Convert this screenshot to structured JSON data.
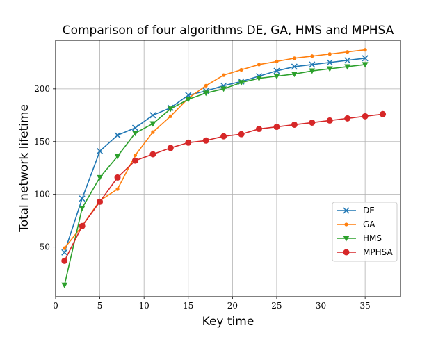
{
  "chart_data": {
    "type": "line",
    "title": "Comparison of four algorithms DE, GA, HMS and MPHSA",
    "xlabel": "Key time",
    "ylabel": "Total network lifetime",
    "xlim": [
      0,
      39
    ],
    "ylim": [
      3,
      246
    ],
    "xticks": [
      0,
      5,
      10,
      15,
      20,
      25,
      30,
      35
    ],
    "yticks": [
      50,
      100,
      150,
      200
    ],
    "grid": true,
    "legend_position": "center-right",
    "series": [
      {
        "name": "DE",
        "color": "#1f77b4",
        "marker": "x",
        "x": [
          1,
          3,
          5,
          7,
          9,
          11,
          13,
          15,
          17,
          19,
          21,
          23,
          25,
          27,
          29,
          31,
          33,
          35
        ],
        "y": [
          45,
          96,
          141,
          156,
          163,
          175,
          182,
          194,
          198,
          203,
          207,
          212,
          217,
          221,
          223,
          225,
          227,
          229
        ]
      },
      {
        "name": "GA",
        "color": "#ff7f0e",
        "marker": "dot",
        "x": [
          1,
          3,
          5,
          7,
          9,
          11,
          13,
          15,
          17,
          19,
          21,
          23,
          25,
          27,
          29,
          31,
          33,
          35
        ],
        "y": [
          49,
          70,
          94,
          105,
          137,
          159,
          174,
          191,
          203,
          213,
          218,
          223,
          226,
          229,
          231,
          233,
          235,
          237
        ]
      },
      {
        "name": "HMS",
        "color": "#2ca02c",
        "marker": "triangle-down",
        "x": [
          1,
          3,
          5,
          7,
          9,
          11,
          13,
          15,
          17,
          19,
          21,
          23,
          25,
          27,
          29,
          31,
          33,
          35
        ],
        "y": [
          14,
          87,
          116,
          136,
          158,
          167,
          181,
          190,
          196,
          200,
          206,
          210,
          212,
          214,
          217,
          219,
          221,
          223
        ]
      },
      {
        "name": "MPHSA",
        "color": "#d62728",
        "marker": "circle",
        "x": [
          1,
          3,
          5,
          7,
          9,
          11,
          13,
          15,
          17,
          19,
          21,
          23,
          25,
          27,
          29,
          31,
          33,
          35,
          37
        ],
        "y": [
          37,
          70,
          93,
          116,
          132,
          138,
          144,
          149,
          151,
          155,
          157,
          162,
          164,
          166,
          168,
          170,
          172,
          174,
          176
        ]
      }
    ]
  }
}
